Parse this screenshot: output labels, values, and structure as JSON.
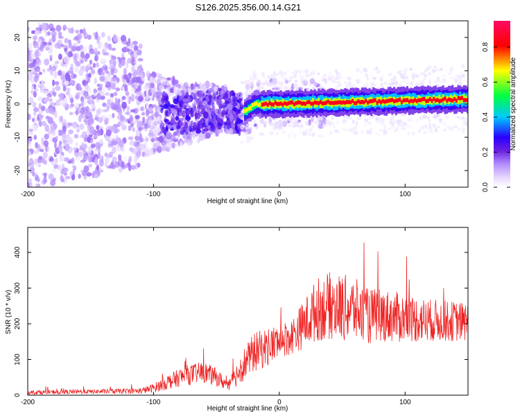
{
  "title": "S126.2025.356.00.14.G21",
  "colors": {
    "snr_line": "#ee2222",
    "colormap": [
      "#ffffff",
      "#e6d6ff",
      "#b38cff",
      "#6a1fe0",
      "#2a00ff",
      "#00c8ff",
      "#00ff40",
      "#ffff00",
      "#ff0000",
      "#ff0a66"
    ]
  },
  "chart_data": [
    {
      "type": "heatmap",
      "title": "",
      "xlabel": "Height of straight line (km)",
      "ylabel": "Frequency (Hz)",
      "xlim": [
        -200,
        150
      ],
      "ylim": [
        -25,
        25
      ],
      "x_ticks": [
        -200,
        -100,
        0,
        100
      ],
      "x_tick_labels": [
        "-200",
        "-100",
        "0",
        "100"
      ],
      "y_ticks": [
        -20,
        -10,
        0,
        10,
        20
      ],
      "y_tick_labels": [
        "-20",
        "-10",
        "0",
        "10",
        "20"
      ],
      "description_of_pattern": "noisy diffuse blobs for x<-30, narrow ridge near 0 Hz rising slightly to ~2 Hz for x>-20",
      "ridge": {
        "x": [
          -90,
          -70,
          -50,
          -40,
          -30,
          -20,
          0,
          50,
          100,
          150
        ],
        "freq_hz": [
          -3,
          -3,
          -1.5,
          -2,
          -3,
          0,
          0,
          0.5,
          1,
          1.5
        ]
      },
      "colorbar": {
        "label": "Normalized spectral amplitude",
        "range": [
          0,
          0.95
        ],
        "ticks": [
          0.0,
          0.2,
          0.4,
          0.6,
          0.8
        ],
        "tick_labels": [
          "0.0",
          "0.2",
          "0.4",
          "0.6",
          "0.8"
        ]
      }
    },
    {
      "type": "line",
      "title": "",
      "xlabel": "Height of straight line (km)",
      "ylabel": "SNR (10 * v/v)",
      "xlim": [
        -200,
        150
      ],
      "ylim": [
        0,
        470
      ],
      "x_ticks": [
        -200,
        -100,
        0,
        100
      ],
      "x_tick_labels": [
        "-200",
        "-100",
        "0",
        "100"
      ],
      "y_ticks": [
        0,
        100,
        200,
        300,
        400
      ],
      "y_tick_labels": [
        "0",
        "100",
        "200",
        "300",
        "400"
      ],
      "series": [
        {
          "name": "SNR",
          "envelope_x": [
            -200,
            -150,
            -110,
            -100,
            -90,
            -75,
            -60,
            -50,
            -40,
            -30,
            -20,
            -10,
            0,
            10,
            20,
            30,
            40,
            50,
            60,
            70,
            80,
            100,
            120,
            150
          ],
          "mean_values": [
            8,
            10,
            12,
            20,
            35,
            55,
            65,
            50,
            25,
            80,
            120,
            135,
            150,
            165,
            200,
            240,
            250,
            245,
            240,
            220,
            225,
            215,
            210,
            205
          ],
          "spread_values": [
            6,
            6,
            8,
            12,
            20,
            28,
            30,
            25,
            15,
            45,
            55,
            55,
            50,
            50,
            70,
            90,
            95,
            95,
            90,
            80,
            75,
            70,
            60,
            55
          ]
        }
      ]
    }
  ]
}
